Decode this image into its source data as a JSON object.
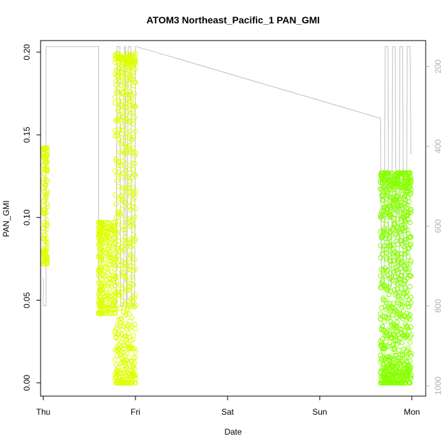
{
  "chart_data": {
    "type": "scatter",
    "title": "ATOM3 Northeast_Pacific_1 PAN_GMI",
    "xlabel": "Date",
    "ylabel": "PAN_GMI",
    "x_ticks": [
      "Thu",
      "Fri",
      "Sat",
      "Sun",
      "Mon"
    ],
    "xlim": [
      -0.03,
      4.15
    ],
    "ylim": [
      -0.008,
      0.207
    ],
    "y_ticks": [
      0.0,
      0.05,
      0.1,
      0.15,
      0.2
    ],
    "y_tick_labels": [
      "0.00",
      "0.05",
      "0.10",
      "0.15",
      "0.20"
    ],
    "y2_label": "",
    "y2_ticks": [
      200,
      400,
      600,
      800,
      1000
    ],
    "y2lim": [
      1026,
      135
    ],
    "grid": false,
    "colors": {
      "points_early": "#ddff00",
      "points_late": "#88ff00",
      "pressure_line": "#c0c0c0",
      "axes": "#000000",
      "right_axis": "#b0b0b0"
    },
    "series": [
      {
        "marker": "open-circle",
        "segments": [
          {
            "x": [
              0.0,
              0.01,
              0.02,
              0.03,
              0.04
            ],
            "y_min": 0.072,
            "y_max": 0.142,
            "color": "#ddff00"
          },
          {
            "x": [
              0.6,
              0.61,
              0.62,
              0.63,
              0.64,
              0.66,
              0.68,
              0.7,
              0.72,
              0.74,
              0.76,
              0.78
            ],
            "y_min": 0.042,
            "y_max": 0.097,
            "color": "#ddff00"
          },
          {
            "x": [
              0.78,
              0.79,
              0.8,
              0.81,
              0.82,
              0.83,
              0.84,
              0.85,
              0.86,
              0.87,
              0.88,
              0.89,
              0.9,
              0.91,
              0.92,
              0.93,
              0.94,
              0.95,
              0.96,
              0.97,
              0.98,
              0.99,
              1.0
            ],
            "y_min": 0.0,
            "y_max": 0.199,
            "color": "#ddff00"
          },
          {
            "x": [
              3.66,
              3.67,
              3.68,
              3.69,
              3.7,
              3.71,
              3.72,
              3.73,
              3.74,
              3.75,
              3.76,
              3.77,
              3.78,
              3.79,
              3.8,
              3.81,
              3.82,
              3.83,
              3.84,
              3.85,
              3.86,
              3.87,
              3.88,
              3.89,
              3.9,
              3.91,
              3.92,
              3.93,
              3.94,
              3.95,
              3.96,
              3.97,
              3.98,
              3.99
            ],
            "y_min": 0.0,
            "y_max": 0.127,
            "color": "#88ff00"
          }
        ]
      },
      {
        "name": "pressure",
        "axis": "right",
        "style": "line",
        "x": [
          0.0,
          0.0,
          0.03,
          0.03,
          0.6,
          0.6,
          0.79,
          0.8,
          0.83,
          0.84,
          0.87,
          0.88,
          0.89,
          0.9,
          0.91,
          0.92,
          0.95,
          0.96,
          0.99,
          1.0,
          1.01,
          3.66,
          3.67,
          3.7,
          3.71,
          3.74,
          3.75,
          3.78,
          3.79,
          3.82,
          3.83,
          3.86,
          3.87,
          3.9,
          3.91,
          3.94,
          3.95,
          3.98,
          3.99
        ],
        "y": [
          730,
          800,
          800,
          150,
          150,
          800,
          800,
          150,
          150,
          800,
          800,
          150,
          150,
          800,
          800,
          150,
          150,
          800,
          800,
          150,
          150,
          330,
          750,
          750,
          150,
          150,
          750,
          750,
          150,
          150,
          780,
          780,
          150,
          150,
          760,
          760,
          150,
          150,
          420
        ]
      }
    ]
  }
}
